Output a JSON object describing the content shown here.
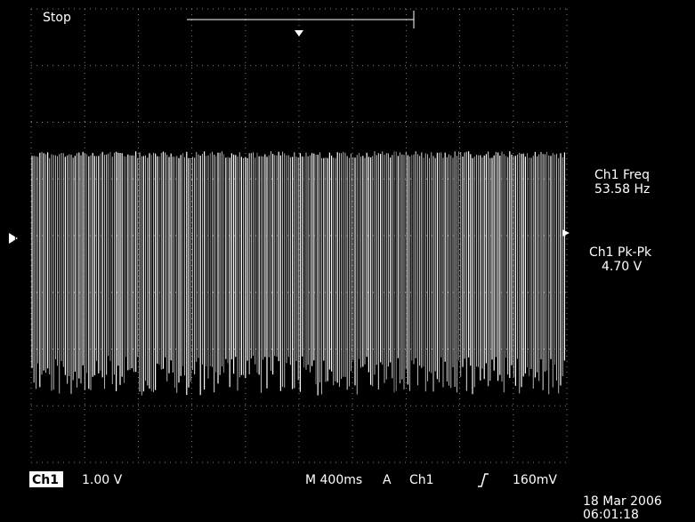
{
  "status": "Stop",
  "measurements": [
    {
      "label": "Ch1 Freq",
      "value": "53.58 Hz"
    },
    {
      "label": "Ch1 Pk-Pk",
      "value": "4.70 V"
    }
  ],
  "channel": {
    "marker": "1",
    "name": "Ch1",
    "scale": "1.00 V"
  },
  "timebase": {
    "scale": "M 400ms",
    "trigger_mode": "A",
    "trigger_source": "Ch1",
    "trigger_level": "160mV"
  },
  "timestamp": {
    "date": "18 Mar 2006",
    "time": "06:01:18"
  }
}
